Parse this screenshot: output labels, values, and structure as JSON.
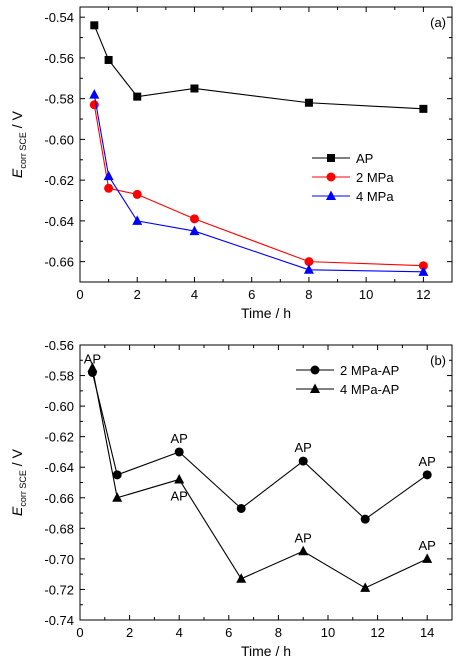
{
  "chart_data": [
    {
      "type": "line",
      "panel_label": "(a)",
      "xlabel": "Time / h",
      "ylabel": {
        "main": "E",
        "sub": "corr SCE",
        "unit": " / V"
      },
      "xlim": [
        0,
        13
      ],
      "ylim": [
        -0.67,
        -0.535
      ],
      "xticks": [
        0,
        2,
        4,
        6,
        8,
        10,
        12
      ],
      "yticks": [
        -0.66,
        -0.64,
        -0.62,
        -0.6,
        -0.58,
        -0.56,
        -0.54
      ],
      "ytick_labels": [
        "-0.66",
        "-0.64",
        "-0.62",
        "-0.60",
        "-0.58",
        "-0.56",
        "-0.54"
      ],
      "legend_position": "center-right",
      "grid": false,
      "series": [
        {
          "name": "AP",
          "color": "#000000",
          "marker": "square",
          "x": [
            0.5,
            1,
            2,
            4,
            8,
            12
          ],
          "y": [
            -0.544,
            -0.561,
            -0.579,
            -0.575,
            -0.582,
            -0.585
          ]
        },
        {
          "name": "2 MPa",
          "color": "#ff0000",
          "marker": "circle",
          "x": [
            0.5,
            1,
            2,
            4,
            8,
            12
          ],
          "y": [
            -0.583,
            -0.624,
            -0.627,
            -0.639,
            -0.66,
            -0.662
          ]
        },
        {
          "name": "4 MPa",
          "color": "#0000ff",
          "marker": "triangle",
          "x": [
            0.5,
            1,
            2,
            4,
            8,
            12
          ],
          "y": [
            -0.578,
            -0.618,
            -0.64,
            -0.645,
            -0.664,
            -0.665
          ]
        }
      ]
    },
    {
      "type": "line",
      "panel_label": "(b)",
      "xlabel": "Time / h",
      "ylabel": {
        "main": "E",
        "sub": "corr SCE",
        "unit": " / V"
      },
      "xlim": [
        0,
        15
      ],
      "ylim": [
        -0.74,
        -0.56
      ],
      "xticks": [
        0,
        2,
        4,
        6,
        8,
        10,
        12,
        14
      ],
      "yticks": [
        -0.74,
        -0.72,
        -0.7,
        -0.68,
        -0.66,
        -0.64,
        -0.62,
        -0.6,
        -0.58,
        -0.56
      ],
      "ytick_labels": [
        "-0.74",
        "-0.72",
        "-0.70",
        "-0.68",
        "-0.66",
        "-0.64",
        "-0.62",
        "-0.60",
        "-0.58",
        "-0.56"
      ],
      "legend_position": "top-right",
      "grid": false,
      "series": [
        {
          "name": "2 MPa-AP",
          "color": "#000000",
          "marker": "circle",
          "x": [
            0.5,
            1.5,
            4,
            6.5,
            9,
            11.5,
            14
          ],
          "y": [
            -0.578,
            -0.645,
            -0.63,
            -0.667,
            -0.636,
            -0.674,
            -0.645
          ]
        },
        {
          "name": "4 MPa-AP",
          "color": "#000000",
          "marker": "triangle",
          "x": [
            0.5,
            1.5,
            4,
            6.5,
            9,
            11.5,
            14
          ],
          "y": [
            -0.575,
            -0.66,
            -0.648,
            -0.713,
            -0.695,
            -0.719,
            -0.7
          ]
        }
      ],
      "annotations": [
        {
          "text": "AP",
          "x": 0.5,
          "y": -0.578,
          "side": "above"
        },
        {
          "text": "AP",
          "x": 4,
          "y": -0.63,
          "side": "above"
        },
        {
          "text": "AP",
          "x": 4,
          "y": -0.648,
          "side": "below"
        },
        {
          "text": "AP",
          "x": 9,
          "y": -0.636,
          "side": "above"
        },
        {
          "text": "AP",
          "x": 9,
          "y": -0.695,
          "side": "above"
        },
        {
          "text": "AP",
          "x": 14,
          "y": -0.645,
          "side": "above"
        },
        {
          "text": "AP",
          "x": 14,
          "y": -0.7,
          "side": "above"
        }
      ]
    }
  ]
}
